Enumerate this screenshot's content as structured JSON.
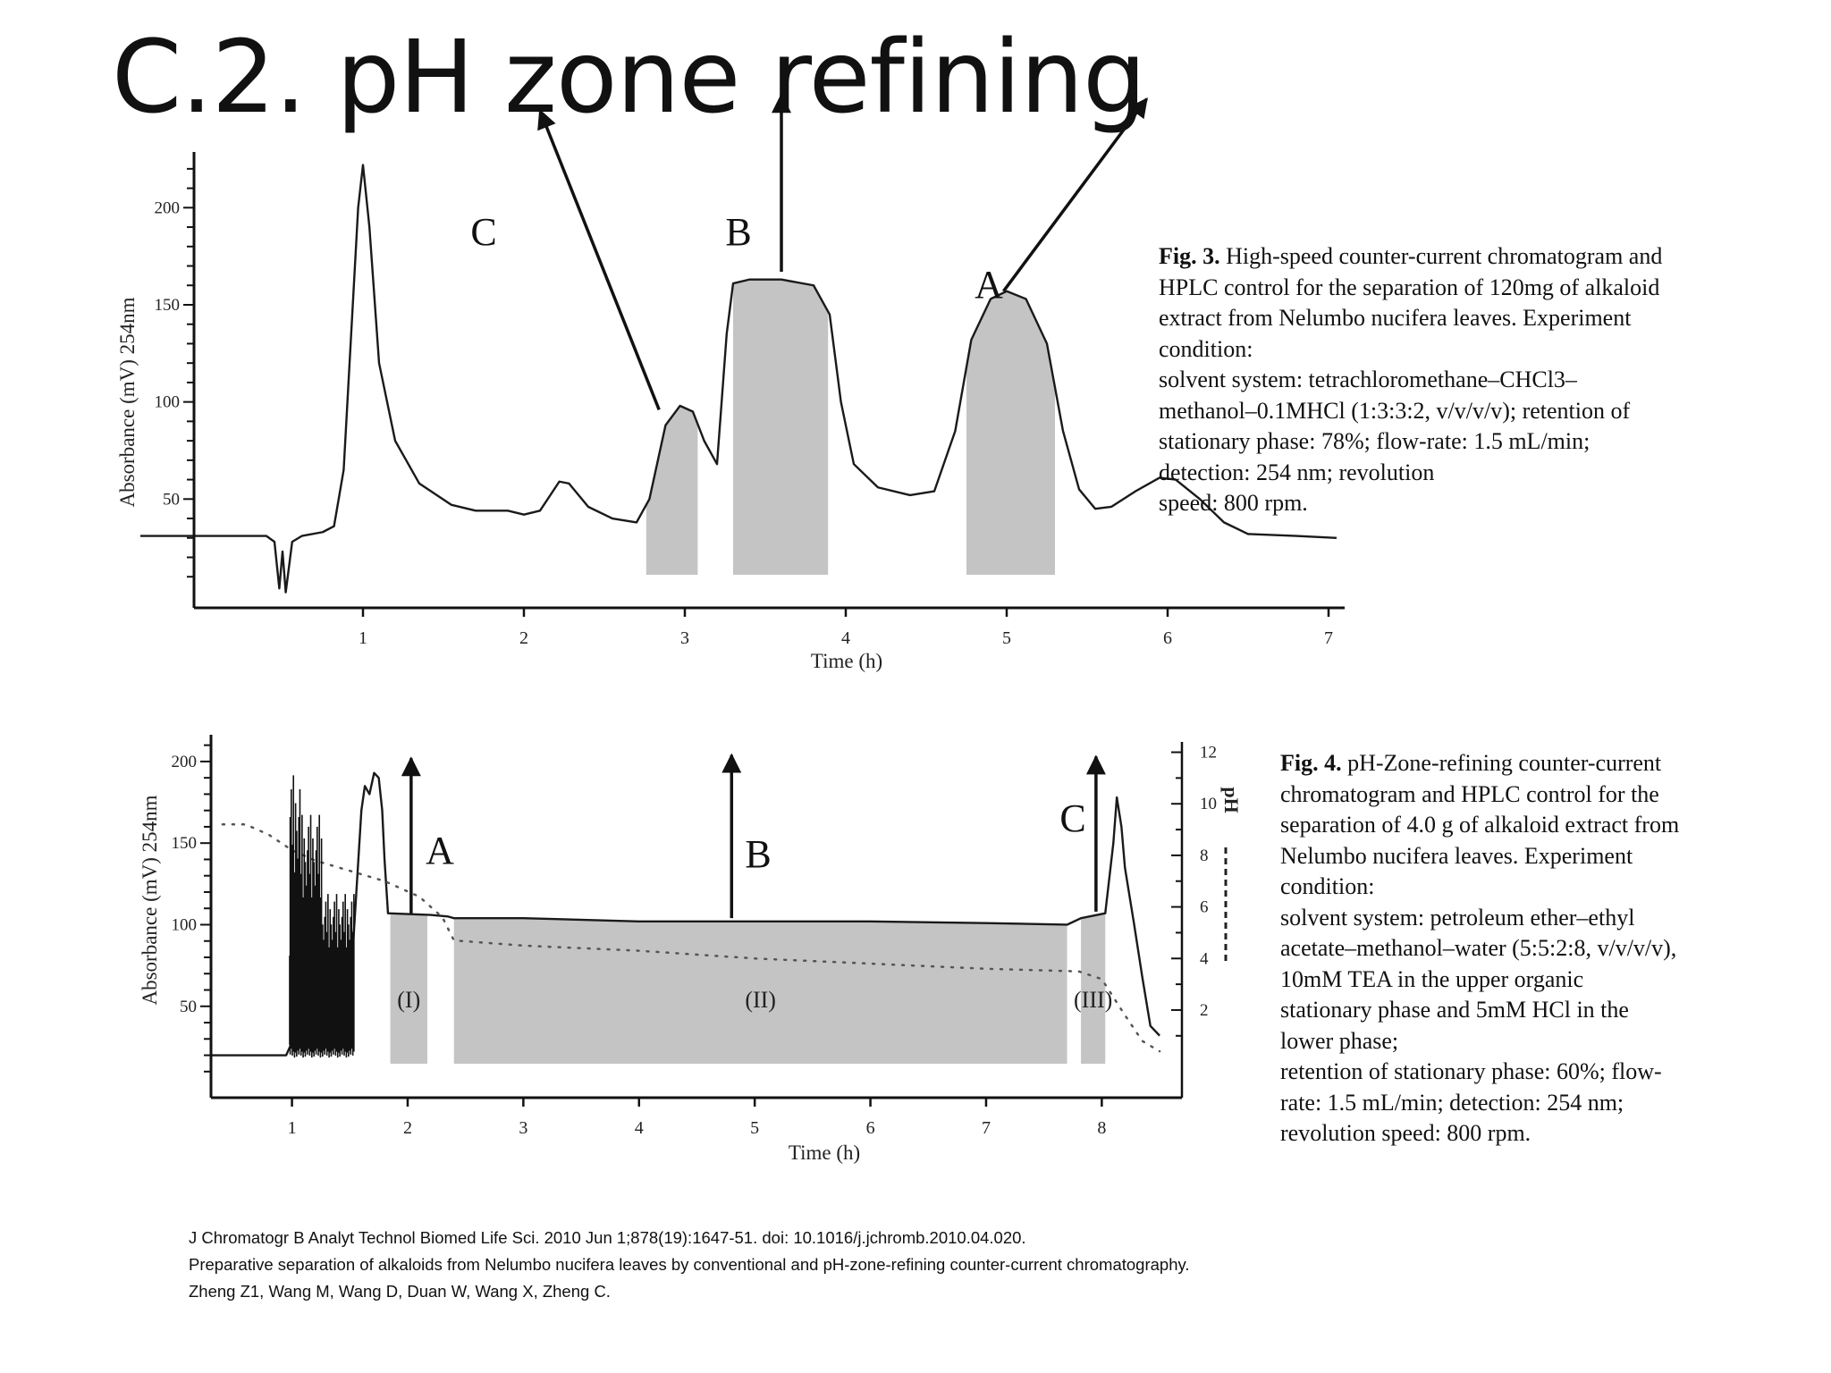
{
  "slide": {
    "title": "C.2. pH zone refining"
  },
  "fig3": {
    "caption_label": "Fig. 3.",
    "caption_lines": [
      "High-speed counter-current chromatogram and",
      "HPLC control for the separation of 120mg of alkaloid",
      "extract from Nelumbo nucifera leaves. Experiment",
      "condition:",
      "solvent system: tetrachloromethane–CHCl3–",
      "methanol–0.1MHCl (1:3:3:2, v/v/v/v); retention of",
      "stationary phase: 78%; flow-rate: 1.5 mL/min;",
      "detection: 254 nm; revolution",
      "speed: 800 rpm."
    ]
  },
  "fig4": {
    "caption_label": "Fig. 4.",
    "caption_lines": [
      "pH-Zone-refining counter-current",
      "chromatogram and HPLC control for the",
      "separation of 4.0 g of alkaloid extract from",
      "Nelumbo nucifera leaves. Experiment",
      "condition:",
      "solvent system: petroleum ether–ethyl",
      "acetate–methanol–water (5:5:2:8, v/v/v/v),",
      "10mM TEA in the upper organic",
      "stationary phase and 5mM HCl in the",
      "lower phase;",
      "retention of stationary phase: 60%; flow-",
      "rate: 1.5 mL/min; detection: 254 nm;",
      "revolution speed: 800 rpm."
    ]
  },
  "references": [
    "J Chromatogr B Analyt Technol Biomed Life Sci. 2010 Jun 1;878(19):1647-51. doi: 10.1016/j.jchromb.2010.04.020.",
    "Preparative separation of alkaloids from Nelumbo nucifera leaves by conventional and pH-zone-refining counter-current chromatography.",
    "Zheng Z1, Wang M, Wang D, Duan W, Wang X, Zheng C."
  ],
  "chart_data": [
    {
      "type": "line",
      "xlabel": "Time (h)",
      "ylabel": "Absorbance (mV) 254nm",
      "xlim": [
        -0.05,
        7.1
      ],
      "ylim": [
        -6,
        225
      ],
      "x_ticks": [
        1,
        2,
        3,
        4,
        5,
        6,
        7
      ],
      "y_ticks": [
        50,
        100,
        150,
        200
      ],
      "series": [
        {
          "values": [
            [
              -1.05,
              31
            ],
            [
              0.4,
              31
            ],
            [
              0.45,
              28
            ],
            [
              0.48,
              4
            ],
            [
              0.5,
              23
            ],
            [
              0.52,
              2
            ],
            [
              0.56,
              28
            ],
            [
              0.62,
              31
            ],
            [
              0.75,
              33
            ],
            [
              0.82,
              36
            ],
            [
              0.88,
              65
            ],
            [
              0.93,
              140
            ],
            [
              0.97,
              200
            ],
            [
              1.0,
              222
            ],
            [
              1.04,
              190
            ],
            [
              1.1,
              120
            ],
            [
              1.2,
              80
            ],
            [
              1.35,
              58
            ],
            [
              1.55,
              47
            ],
            [
              1.7,
              44
            ],
            [
              1.9,
              44
            ],
            [
              2.0,
              42
            ],
            [
              2.1,
              44
            ],
            [
              2.22,
              59
            ],
            [
              2.28,
              58
            ],
            [
              2.4,
              46
            ],
            [
              2.55,
              40
            ],
            [
              2.7,
              38
            ],
            [
              2.78,
              50
            ],
            [
              2.88,
              88
            ],
            [
              2.97,
              98
            ],
            [
              3.05,
              95
            ],
            [
              3.12,
              80
            ],
            [
              3.2,
              68
            ],
            [
              3.26,
              135
            ],
            [
              3.3,
              161
            ],
            [
              3.4,
              163
            ],
            [
              3.6,
              163
            ],
            [
              3.8,
              160
            ],
            [
              3.9,
              145
            ],
            [
              3.97,
              100
            ],
            [
              4.05,
              68
            ],
            [
              4.2,
              56
            ],
            [
              4.4,
              52
            ],
            [
              4.55,
              54
            ],
            [
              4.68,
              85
            ],
            [
              4.78,
              132
            ],
            [
              4.9,
              153
            ],
            [
              5.0,
              157
            ],
            [
              5.12,
              153
            ],
            [
              5.25,
              130
            ],
            [
              5.35,
              85
            ],
            [
              5.45,
              55
            ],
            [
              5.55,
              45
            ],
            [
              5.65,
              46
            ],
            [
              5.8,
              54
            ],
            [
              5.95,
              61
            ],
            [
              6.05,
              60
            ],
            [
              6.2,
              50
            ],
            [
              6.35,
              38
            ],
            [
              6.5,
              32
            ],
            [
              6.8,
              31
            ],
            [
              7.05,
              30
            ]
          ]
        }
      ],
      "shaded_regions": [
        [
          2.76,
          3.08
        ],
        [
          3.3,
          3.89
        ],
        [
          4.75,
          5.3
        ]
      ],
      "annotations": [
        {
          "label": "C",
          "from": [
            2.84,
            96
          ],
          "to": [
            2.1,
            250
          ]
        },
        {
          "label": "B",
          "from": [
            3.6,
            167
          ],
          "to": [
            3.6,
            258
          ]
        },
        {
          "label": "A",
          "from": [
            4.98,
            157
          ],
          "to": [
            5.87,
            256
          ]
        }
      ]
    },
    {
      "type": "line",
      "xlabel": "Time (h)",
      "ylabel": "Absorbance (mV) 254nm",
      "y2label": "pH",
      "xlim": [
        0.3,
        8.6
      ],
      "ylim": [
        -6,
        212
      ],
      "y2lim": [
        -1.4,
        12.4
      ],
      "x_ticks": [
        1,
        2,
        3,
        4,
        5,
        6,
        7,
        8
      ],
      "y_ticks": [
        50,
        100,
        150,
        200
      ],
      "y2_ticks": [
        2,
        4,
        6,
        8,
        10,
        12
      ],
      "series": [
        {
          "line_style": "solid",
          "values": [
            [
              0.3,
              20
            ],
            [
              0.95,
              20
            ],
            [
              1.0,
              28
            ],
            [
              1.1,
              60
            ],
            [
              1.2,
              45
            ],
            [
              1.3,
              50
            ],
            [
              1.4,
              40
            ],
            [
              1.5,
              55
            ],
            [
              1.6,
              170
            ],
            [
              1.63,
              185
            ],
            [
              1.67,
              180
            ],
            [
              1.71,
              193
            ],
            [
              1.75,
              190
            ],
            [
              1.78,
              170
            ],
            [
              1.8,
              140
            ],
            [
              1.83,
              107
            ],
            [
              2.2,
              106
            ],
            [
              2.35,
              105
            ],
            [
              2.4,
              104
            ],
            [
              3.0,
              104
            ],
            [
              4.0,
              102
            ],
            [
              5.0,
              102
            ],
            [
              6.0,
              102
            ],
            [
              7.0,
              101
            ],
            [
              7.7,
              100
            ],
            [
              7.82,
              104
            ],
            [
              8.03,
              107
            ],
            [
              8.1,
              150
            ],
            [
              8.13,
              178
            ],
            [
              8.17,
              160
            ],
            [
              8.2,
              135
            ],
            [
              8.28,
              100
            ],
            [
              8.35,
              68
            ],
            [
              8.42,
              38
            ],
            [
              8.5,
              32
            ]
          ]
        },
        {
          "line_style": "dotted",
          "axis": "right",
          "values": [
            [
              0.4,
              9.2
            ],
            [
              0.6,
              9.2
            ],
            [
              0.8,
              8.8
            ],
            [
              1.0,
              8.2
            ],
            [
              1.2,
              7.8
            ],
            [
              1.5,
              7.4
            ],
            [
              1.8,
              7.0
            ],
            [
              2.1,
              6.4
            ],
            [
              2.3,
              5.6
            ],
            [
              2.4,
              4.7
            ],
            [
              3.0,
              4.5
            ],
            [
              4.0,
              4.3
            ],
            [
              5.0,
              4.0
            ],
            [
              6.0,
              3.8
            ],
            [
              7.0,
              3.6
            ],
            [
              7.8,
              3.5
            ],
            [
              8.0,
              3.2
            ],
            [
              8.2,
              1.8
            ],
            [
              8.35,
              0.8
            ],
            [
              8.5,
              0.4
            ]
          ]
        }
      ],
      "shaded_regions": [
        {
          "label": "(I)",
          "range": [
            1.85,
            2.17
          ]
        },
        {
          "label": "(II)",
          "range": [
            2.4,
            7.7
          ]
        },
        {
          "label": "(III)",
          "range": [
            7.82,
            8.03
          ]
        }
      ],
      "annotations": [
        {
          "label": "A",
          "from": [
            2.03,
            107
          ],
          "to": [
            2.03,
            202
          ]
        },
        {
          "label": "B",
          "from": [
            4.8,
            104
          ],
          "to": [
            4.8,
            204
          ]
        },
        {
          "label": "C",
          "from": [
            7.95,
            108
          ],
          "to": [
            7.95,
            203
          ]
        }
      ]
    }
  ]
}
